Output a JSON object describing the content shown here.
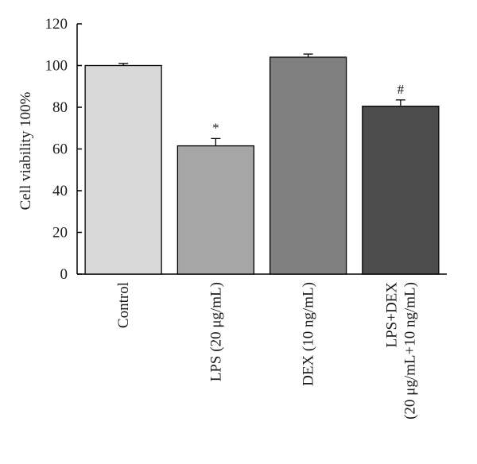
{
  "chart_data": {
    "type": "bar",
    "title": "",
    "xlabel": "",
    "ylabel": "Cell viability 100%",
    "ylim": [
      0,
      120
    ],
    "yticks": [
      0,
      20,
      40,
      60,
      80,
      100,
      120
    ],
    "grid": false,
    "legend": "none",
    "categories": [
      [
        "Control"
      ],
      [
        "LPS (20 μg/mL)"
      ],
      [
        "DEX (10 ng/mL)"
      ],
      [
        "LPS+DEX",
        "(20 μg/mL+10 ng/mL)"
      ]
    ],
    "values": [
      100,
      61.5,
      104,
      80.5
    ],
    "errors": [
      1,
      3.5,
      1.5,
      3
    ],
    "annotations": [
      "",
      "*",
      "",
      "#"
    ],
    "colors": [
      "#d9d9d9",
      "#a6a6a6",
      "#808080",
      "#4d4d4d"
    ]
  }
}
